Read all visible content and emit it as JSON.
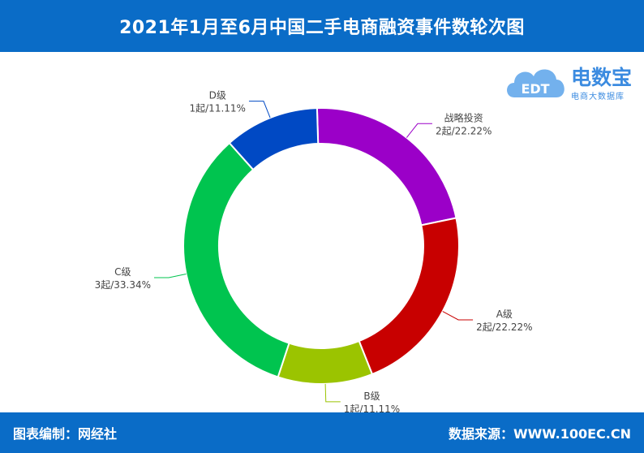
{
  "header": {
    "title": "2021年1月至6月中国二手电商融资事件数轮次图"
  },
  "footer": {
    "left": "图表编制：网经社",
    "right": "数据来源：WWW.100EC.CN"
  },
  "logo": {
    "text": "电数宝",
    "subtext": "电商大数据库",
    "mark": "EDT",
    "icon": "cloud-icon",
    "color": "#3b8be0"
  },
  "chart_data": {
    "type": "pie",
    "donut": true,
    "slices": [
      {
        "label": "战略投资",
        "value": 2,
        "label_text": "2起/22.22%",
        "color": "#9b00c8"
      },
      {
        "label": "A级",
        "value": 2,
        "label_text": "2起/22.22%",
        "color": "#c80000"
      },
      {
        "label": "B级",
        "value": 1,
        "label_text": "1起/11.11%",
        "color": "#9bc400"
      },
      {
        "label": "C级",
        "value": 3,
        "label_text": "3起/33.34%",
        "color": "#00c44f"
      },
      {
        "label": "D级",
        "value": 1,
        "label_text": "1起/11.11%",
        "color": "#0049c4"
      }
    ]
  }
}
